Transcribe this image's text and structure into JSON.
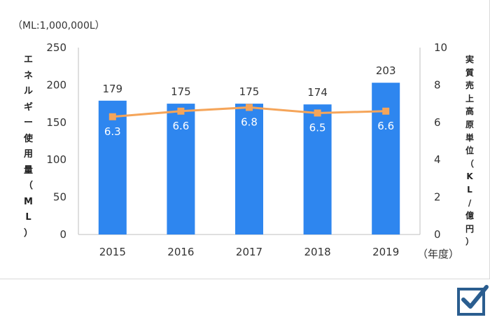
{
  "chart_data": {
    "type": "bar",
    "categories": [
      "2015",
      "2016",
      "2017",
      "2018",
      "2019"
    ],
    "series": [
      {
        "values": [
          179,
          175,
          175,
          174,
          203
        ],
        "axis": "left",
        "type": "bar",
        "color": "#2e86ef"
      },
      {
        "values": [
          6.3,
          6.6,
          6.8,
          6.5,
          6.6
        ],
        "axis": "right",
        "type": "line",
        "color": "#f5a55a"
      }
    ],
    "y_left": {
      "min": 0,
      "max": 250,
      "ticks": [
        0,
        50,
        100,
        150,
        200,
        250
      ],
      "label": "エネルギー使用量（ML）"
    },
    "y_right": {
      "min": 0,
      "max": 10,
      "ticks": [
        0,
        2,
        4,
        6,
        8,
        10
      ],
      "label": "実質売上高原単位（KL/億円）"
    },
    "unit_note": "（ML:1,000,000L）",
    "xlabel": "（年度）",
    "grid": false
  },
  "icons": {
    "corner": "checkbox-check-icon",
    "corner_color": "#2a5d8f"
  }
}
